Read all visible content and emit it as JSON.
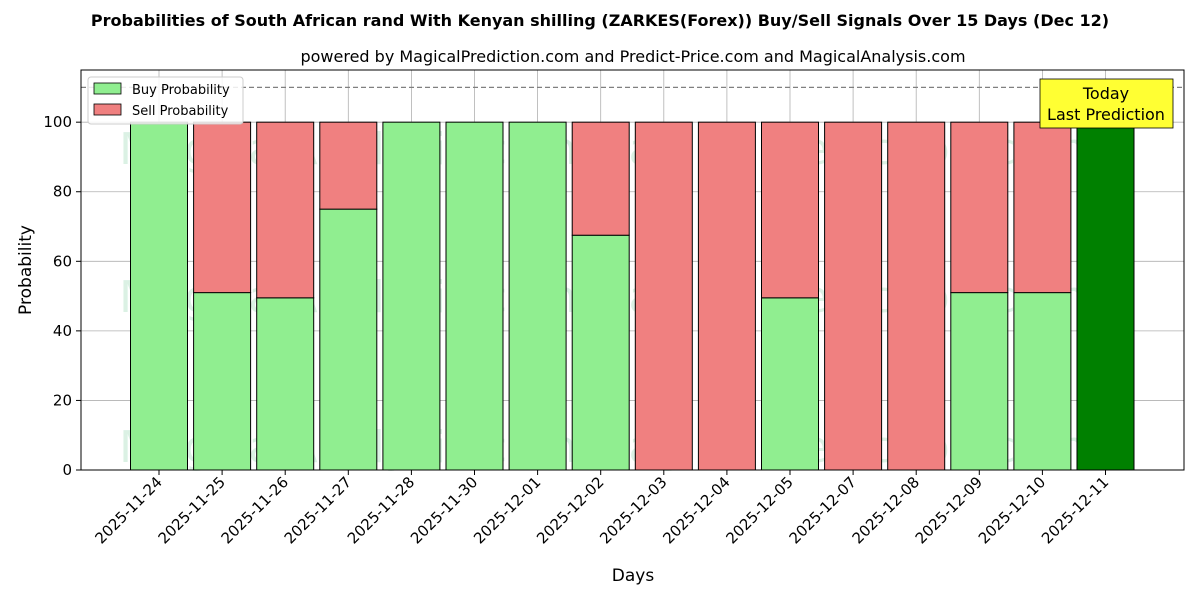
{
  "chart_data": {
    "type": "bar",
    "stacked": true,
    "title": "Probabilities of South African rand With Kenyan shilling (ZARKES(Forex)) Buy/Sell Signals Over 15 Days (Dec 12)",
    "subtitle": "powered by MagicalPrediction.com and Predict-Price.com and MagicalAnalysis.com",
    "xlabel": "Days",
    "ylabel": "Probability",
    "ylim": [
      0,
      115
    ],
    "yticks": [
      0,
      20,
      40,
      60,
      80,
      100
    ],
    "grid": true,
    "legend_position": "top-left",
    "reference_line": 110,
    "categories": [
      "2025-11-24",
      "2025-11-25",
      "2025-11-26",
      "2025-11-27",
      "2025-11-28",
      "2025-11-30",
      "2025-12-01",
      "2025-12-02",
      "2025-12-03",
      "2025-12-04",
      "2025-12-05",
      "2025-12-07",
      "2025-12-08",
      "2025-12-09",
      "2025-12-10",
      "2025-12-11"
    ],
    "series": [
      {
        "name": "Buy Probability",
        "color": "#90ee90",
        "values": [
          100,
          51,
          49.5,
          75,
          100,
          100,
          100,
          67.5,
          0,
          0,
          49.5,
          0,
          0,
          51,
          51,
          100
        ]
      },
      {
        "name": "Sell Probability",
        "color": "#f08080",
        "values": [
          0,
          49,
          50.5,
          25,
          0,
          0,
          0,
          32.5,
          100,
          100,
          50.5,
          100,
          100,
          49,
          49,
          0
        ]
      }
    ],
    "highlight": {
      "index": 15,
      "color": "#008000"
    },
    "annotation": {
      "lines": [
        "Today",
        "Last Prediction"
      ],
      "color": "#ffff33"
    },
    "watermark": {
      "left": "MagicalAnalysis.com",
      "right": "MagicalPrediction.com"
    }
  }
}
